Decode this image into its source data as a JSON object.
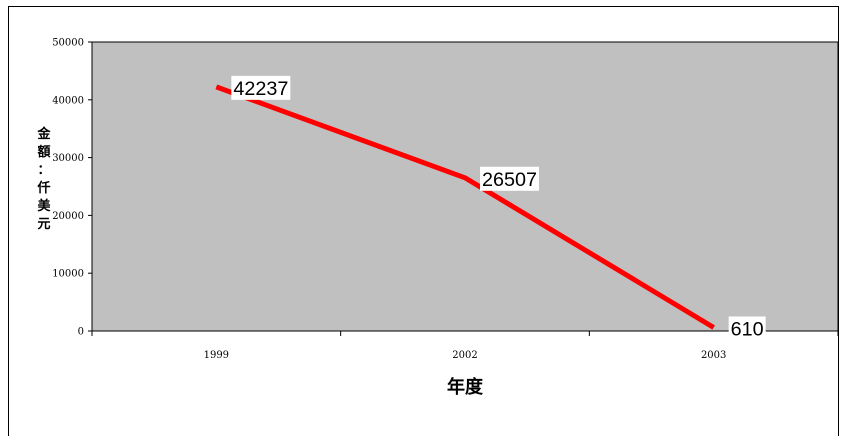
{
  "chart_data": {
    "type": "line",
    "title": "",
    "xlabel": "年度",
    "ylabel": "金額：仟美元",
    "ylabel_chars": [
      "金",
      "額",
      "：",
      "仟",
      "美",
      "元"
    ],
    "categories": [
      "1999",
      "2002",
      "2003"
    ],
    "series": [
      {
        "name": "",
        "values": [
          42237,
          26507,
          610
        ],
        "color": "#ff0000"
      }
    ],
    "data_labels": [
      "42237",
      "26507",
      "610"
    ],
    "yticks": [
      0,
      10000,
      20000,
      30000,
      40000,
      50000
    ],
    "ylim": [
      0,
      50000
    ],
    "grid": false,
    "legend": "none",
    "plot_background": "#c0c0c0"
  }
}
